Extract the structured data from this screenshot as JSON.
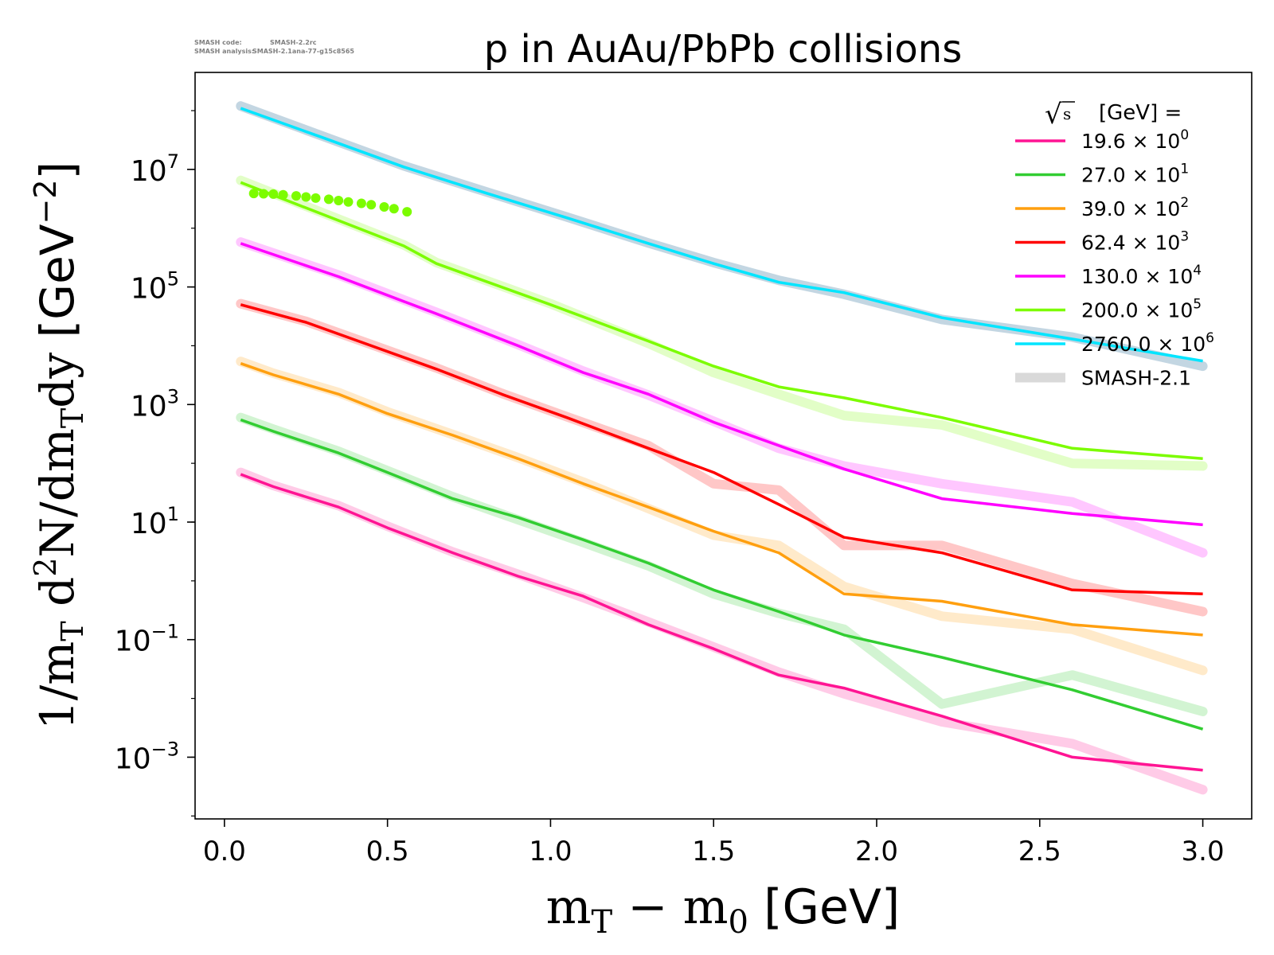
{
  "chart_data": {
    "type": "line",
    "title": "p in AuAu/PbPb collisions",
    "watermark": {
      "line1_label": "SMASH code:",
      "line1_value": "SMASH-2.2rc",
      "line2_label": "SMASH analysis:",
      "line2_value": "SMASH-2.1ana-77-g15c8565"
    },
    "xlabel": "m_T − m_0 [GeV]",
    "ylabel": "1/m_T d²N/dm_T dy [GeV⁻²]",
    "xlim": [
      -0.09,
      3.15
    ],
    "ylim_log10": [
      -4.05,
      8.65
    ],
    "yscale": "log",
    "x_ticks": [
      {
        "v": 0.0,
        "label": "0.0"
      },
      {
        "v": 0.5,
        "label": "0.5"
      },
      {
        "v": 1.0,
        "label": "1.0"
      },
      {
        "v": 1.5,
        "label": "1.5"
      },
      {
        "v": 2.0,
        "label": "2.0"
      },
      {
        "v": 2.5,
        "label": "2.5"
      },
      {
        "v": 3.0,
        "label": "3.0"
      }
    ],
    "y_ticks": [
      {
        "exp": 7,
        "base": "10",
        "sup": "7"
      },
      {
        "exp": 5,
        "base": "10",
        "sup": "5"
      },
      {
        "exp": 3,
        "base": "10",
        "sup": "3"
      },
      {
        "exp": 1,
        "base": "10",
        "sup": "1"
      },
      {
        "exp": -1,
        "base": "10",
        "sup": "−1"
      },
      {
        "exp": -3,
        "base": "10",
        "sup": "−3"
      }
    ],
    "legend": {
      "title": "√s [GeV] =",
      "placement": "top-right",
      "band_label": "SMASH-2.1"
    },
    "band_color": "#d9d9d9",
    "series": [
      {
        "name": "19.6 × 10⁰",
        "label_main": "19.6",
        "label_exp": "0",
        "color": "#ff1493",
        "x": [
          0.05,
          0.15,
          0.35,
          0.5,
          0.7,
          0.9,
          1.1,
          1.3,
          1.5,
          1.7,
          1.9,
          2.2,
          2.6,
          3.0
        ],
        "y": [
          65,
          40,
          18,
          8,
          3,
          1.2,
          0.55,
          0.18,
          0.07,
          0.025,
          0.015,
          0.005,
          0.001,
          0.0006
        ],
        "band_y": [
          70,
          42,
          19,
          8.5,
          3.1,
          1.3,
          0.52,
          0.2,
          0.075,
          0.028,
          0.012,
          0.004,
          0.0017,
          0.00028
        ]
      },
      {
        "name": "27.0 × 10¹",
        "label_main": "27.0",
        "label_exp": "1",
        "color": "#32cd32",
        "x": [
          0.05,
          0.15,
          0.35,
          0.5,
          0.7,
          0.9,
          1.1,
          1.3,
          1.5,
          1.7,
          1.9,
          2.2,
          2.6,
          3.0
        ],
        "y": [
          550,
          350,
          150,
          70,
          25,
          12,
          5,
          2,
          0.7,
          0.3,
          0.12,
          0.05,
          0.014,
          0.003
        ],
        "band_y": [
          600,
          380,
          160,
          75,
          27,
          11,
          4.5,
          1.8,
          0.6,
          0.28,
          0.15,
          0.008,
          0.025,
          0.006
        ]
      },
      {
        "name": "39.0 × 10²",
        "label_main": "39.0",
        "label_exp": "2",
        "color": "#ff9f0f",
        "x": [
          0.05,
          0.15,
          0.35,
          0.5,
          0.7,
          0.9,
          1.1,
          1.3,
          1.5,
          1.7,
          1.9,
          2.2,
          2.6,
          3.0
        ],
        "y": [
          5000,
          3200,
          1500,
          700,
          300,
          120,
          45,
          18,
          7,
          3,
          0.6,
          0.45,
          0.18,
          0.12
        ],
        "band_y": [
          5400,
          3400,
          1600,
          750,
          310,
          125,
          48,
          17,
          6,
          4,
          0.8,
          0.25,
          0.15,
          0.03
        ]
      },
      {
        "name": "62.4 × 10³",
        "label_main": "62.4",
        "label_exp": "3",
        "color": "#ff0000",
        "x": [
          0.05,
          0.25,
          0.45,
          0.65,
          0.85,
          1.05,
          1.3,
          1.5,
          1.7,
          1.9,
          2.2,
          2.6,
          3.0
        ],
        "y": [
          50000,
          25000,
          10000,
          4000,
          1500,
          600,
          180,
          70,
          20,
          5.5,
          3,
          0.7,
          0.6
        ],
        "band_y": [
          52000,
          26000,
          10500,
          4200,
          1550,
          620,
          200,
          45,
          35,
          4,
          4,
          0.9,
          0.3
        ]
      },
      {
        "name": "130.0 × 10⁴",
        "label_main": "130.0",
        "label_exp": "4",
        "color": "#ff00ff",
        "x": [
          0.05,
          0.35,
          0.65,
          0.9,
          1.1,
          1.3,
          1.5,
          1.7,
          1.9,
          2.2,
          2.6,
          3.0
        ],
        "y": [
          550000,
          150000,
          35000,
          10000,
          3500,
          1500,
          500,
          200,
          80,
          25,
          14,
          9
        ],
        "band_y": [
          580000,
          160000,
          37000,
          10500,
          3700,
          1450,
          520,
          180,
          90,
          45,
          22,
          3
        ]
      },
      {
        "name": "200.0 × 10⁵",
        "label_main": "200.0",
        "label_exp": "5",
        "color": "#7cfc00",
        "x": [
          0.05,
          0.55,
          0.65,
          1.0,
          1.3,
          1.5,
          1.7,
          1.9,
          2.2,
          2.6,
          3.0
        ],
        "y": [
          6000000,
          500000,
          250000,
          50000,
          12000,
          4500,
          2000,
          1300,
          600,
          180,
          120
        ],
        "band_y": [
          6500000,
          520000,
          260000,
          52000,
          11000,
          3500,
          1500,
          650,
          450,
          100,
          90
        ]
      },
      {
        "name": "2760.0 × 10⁶",
        "label_main": "2760.0",
        "label_exp": "6",
        "color": "#00e5ff",
        "x": [
          0.05,
          0.3,
          0.55,
          0.8,
          1.05,
          1.3,
          1.5,
          1.7,
          1.9,
          2.2,
          2.6,
          3.0
        ],
        "y": [
          110000000,
          35000000,
          11000000,
          4000000,
          1500000,
          550000,
          250000,
          120000,
          80000,
          30000,
          13000,
          5500
        ],
        "band_y": [
          120000000,
          37000000,
          11500000,
          4200000,
          1550000,
          560000,
          260000,
          130000,
          75000,
          28000,
          14000,
          4500
        ]
      }
    ],
    "scatter_points": {
      "color": "#7cfc00",
      "x": [
        0.09,
        0.12,
        0.15,
        0.18,
        0.22,
        0.25,
        0.28,
        0.32,
        0.35,
        0.38,
        0.42,
        0.45,
        0.49,
        0.52,
        0.56
      ],
      "y": [
        3900000,
        3850000,
        3800000,
        3700000,
        3550000,
        3400000,
        3250000,
        3100000,
        2950000,
        2800000,
        2650000,
        2500000,
        2300000,
        2150000,
        1900000
      ]
    }
  }
}
